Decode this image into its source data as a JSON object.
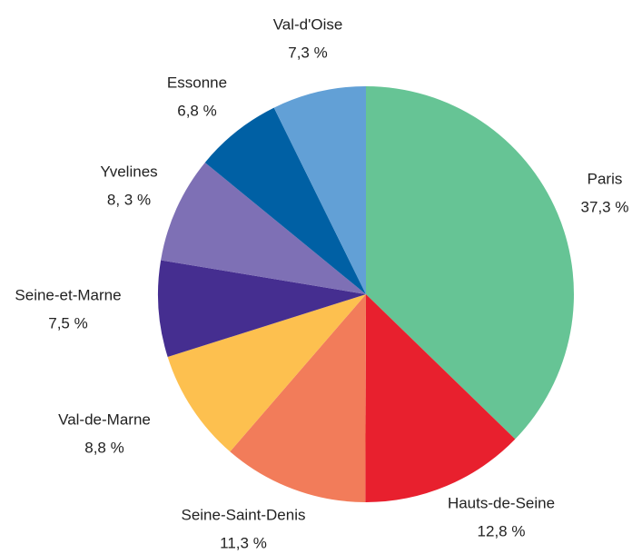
{
  "chart_data": {
    "type": "pie",
    "categories": [
      "Paris",
      "Hauts-de-Seine",
      "Seine-Saint-Denis",
      "Val-de-Marne",
      "Seine-et-Marne",
      "Yvelines",
      "Essonne",
      "Val-d'Oise"
    ],
    "values": [
      37.3,
      12.8,
      11.3,
      8.8,
      7.5,
      8.3,
      6.8,
      7.3
    ],
    "value_labels": [
      "37,3 %",
      "12,8 %",
      "11,3 %",
      "8,8 %",
      "7,5 %",
      "8, 3 %",
      "6,8 %",
      "7,3 %"
    ],
    "colors": [
      "#66c495",
      "#e8202e",
      "#f27c5a",
      "#fdc04f",
      "#452e90",
      "#7e70b5",
      "#0060a4",
      "#62a0d6"
    ]
  }
}
